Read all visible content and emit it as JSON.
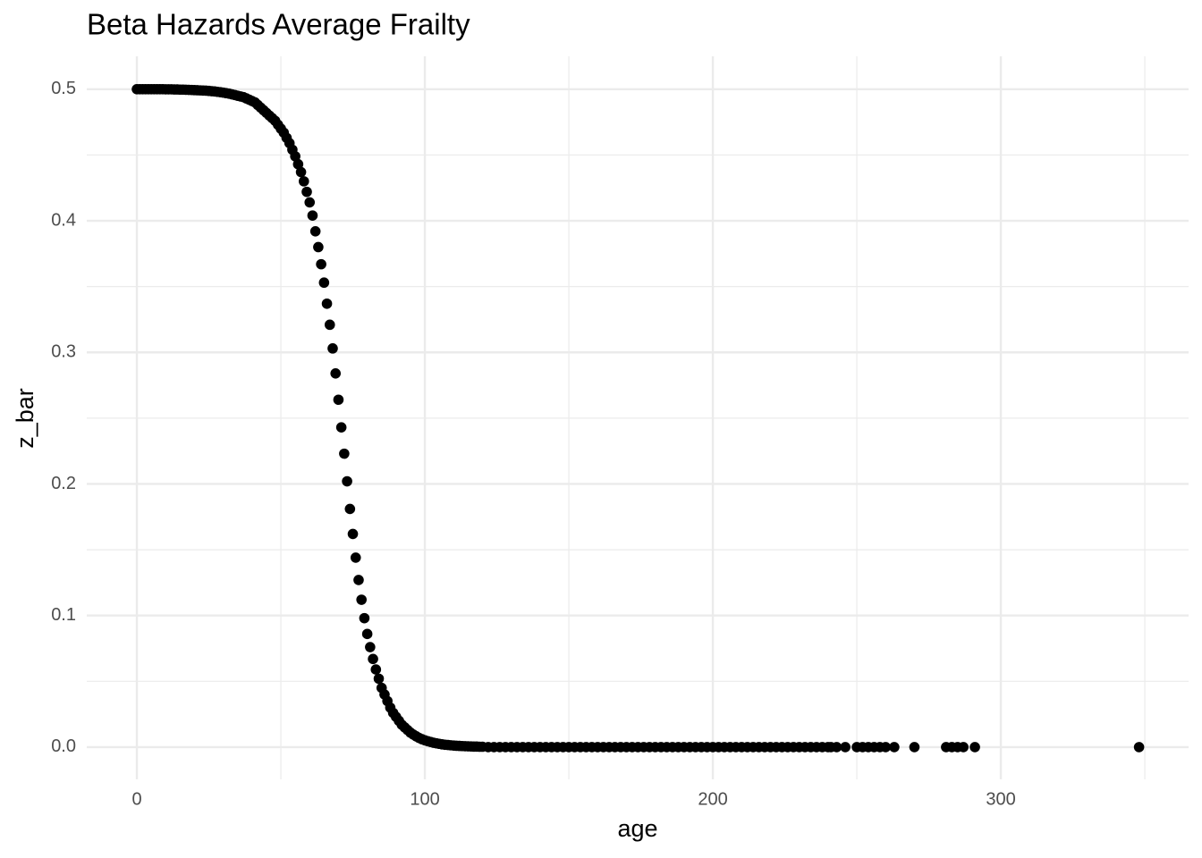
{
  "chart_data": {
    "type": "scatter",
    "title": "Beta Hazards Average Frailty",
    "x_label": "age",
    "y_label": "z_bar",
    "color": "#000000",
    "grid": true,
    "xlim": [
      -17.4,
      365.2
    ],
    "ylim": [
      -0.0245,
      0.525
    ],
    "xticks": [
      0,
      100,
      200,
      300
    ],
    "yticks": [
      {
        "value": 0,
        "label": "0.0"
      },
      0.1,
      0.2,
      0.3,
      0.4,
      0.5
    ],
    "x_minor_grid": [
      50,
      150,
      250,
      350
    ],
    "y_minor_grid": [
      0.05,
      0.15,
      0.25,
      0.35,
      0.45
    ],
    "x": [
      0,
      1,
      2,
      3,
      4,
      5,
      6,
      7,
      8,
      9,
      10,
      11,
      12,
      13,
      14,
      15,
      16,
      17,
      18,
      19,
      20,
      21,
      22,
      23,
      24,
      25,
      26,
      27,
      28,
      29,
      30,
      31,
      32,
      33,
      34,
      35,
      36,
      37,
      38,
      39,
      40,
      41,
      42,
      43,
      44,
      45,
      46,
      47,
      48,
      49,
      50,
      51,
      52,
      53,
      54,
      55,
      56,
      57,
      58,
      59,
      60,
      61,
      62,
      63,
      64,
      65,
      66,
      67,
      68,
      69,
      70,
      71,
      72,
      73,
      74,
      75,
      76,
      77,
      78,
      79,
      80,
      81,
      82,
      83,
      84,
      85,
      86,
      87,
      88,
      89,
      90,
      91,
      92,
      93,
      94,
      95,
      96,
      97,
      98,
      99,
      100,
      101,
      102,
      103,
      104,
      105,
      106,
      107,
      108,
      109,
      110,
      111,
      112,
      113,
      114,
      115,
      116,
      117,
      118,
      119,
      120,
      122,
      124,
      126,
      128,
      130,
      132,
      134,
      136,
      138,
      140,
      142,
      144,
      146,
      148,
      150,
      152,
      154,
      156,
      158,
      160,
      162,
      164,
      166,
      168,
      170,
      172,
      174,
      176,
      178,
      180,
      182,
      184,
      186,
      188,
      190,
      192,
      194,
      196,
      198,
      200,
      202,
      204,
      206,
      208,
      210,
      212,
      214,
      216,
      218,
      220,
      222,
      224,
      226,
      228,
      230,
      232,
      234,
      236,
      238,
      240,
      241,
      243,
      246,
      250,
      252,
      254,
      256,
      258,
      260,
      263,
      270,
      281,
      283,
      285,
      287,
      291,
      348
    ],
    "y": [
      0.5,
      0.5,
      0.5,
      0.5,
      0.5,
      0.5,
      0.5,
      0.5,
      0.5,
      0.5,
      0.4999,
      0.4999,
      0.4999,
      0.4998,
      0.4998,
      0.4997,
      0.4997,
      0.4996,
      0.4995,
      0.4994,
      0.4993,
      0.4992,
      0.4991,
      0.499,
      0.4989,
      0.4987,
      0.4985,
      0.4983,
      0.498,
      0.4977,
      0.4974,
      0.497,
      0.4966,
      0.4961,
      0.4956,
      0.495,
      0.4945,
      0.494,
      0.493,
      0.492,
      0.491,
      0.49,
      0.488,
      0.486,
      0.484,
      0.482,
      0.48,
      0.478,
      0.476,
      0.473,
      0.47,
      0.467,
      0.463,
      0.459,
      0.454,
      0.449,
      0.443,
      0.437,
      0.43,
      0.422,
      0.414,
      0.404,
      0.392,
      0.38,
      0.367,
      0.353,
      0.337,
      0.321,
      0.303,
      0.284,
      0.264,
      0.243,
      0.223,
      0.202,
      0.181,
      0.162,
      0.144,
      0.127,
      0.112,
      0.098,
      0.086,
      0.076,
      0.067,
      0.059,
      0.052,
      0.045,
      0.04,
      0.035,
      0.03,
      0.026,
      0.023,
      0.02,
      0.017,
      0.015,
      0.013,
      0.011,
      0.0095,
      0.0082,
      0.007,
      0.006,
      0.0052,
      0.0045,
      0.0039,
      0.0033,
      0.0029,
      0.0025,
      0.0021,
      0.0018,
      0.0016,
      0.0014,
      0.0012,
      0.001,
      0.0009,
      0.0008,
      0.0007,
      0.0006,
      0.0005,
      0.0004,
      0.0004,
      0.0003,
      0.0003,
      0,
      0,
      0,
      0,
      0,
      0,
      0,
      0,
      0,
      0,
      0,
      0,
      0,
      0,
      0,
      0,
      0,
      0,
      0,
      0,
      0,
      0,
      0,
      0,
      0,
      0,
      0,
      0,
      0,
      0,
      0,
      0,
      0,
      0,
      0,
      0,
      0,
      0,
      0,
      0,
      0,
      0,
      0,
      0,
      0,
      0,
      0,
      0,
      0,
      0,
      0,
      0,
      0,
      0,
      0,
      0,
      0,
      0,
      0,
      0,
      0,
      0,
      0,
      0,
      0,
      0,
      0,
      0,
      0,
      0,
      0,
      0,
      0,
      0,
      0,
      0,
      0
    ]
  }
}
